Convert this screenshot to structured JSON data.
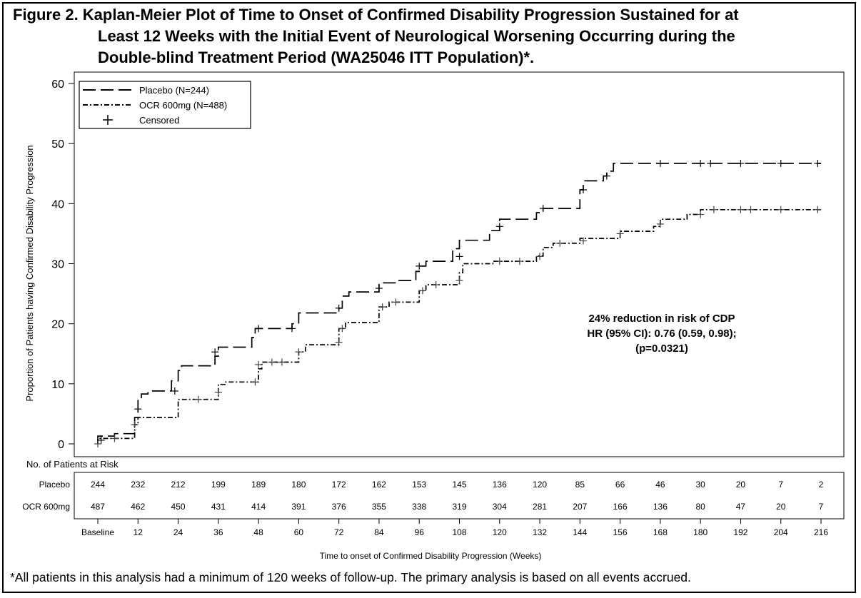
{
  "title": {
    "line1": "Figure 2. Kaplan-Meier Plot of Time to Onset of Confirmed Disability Progression Sustained for at",
    "line2": "Least 12 Weeks with the Initial Event of Neurological Worsening Occurring during the",
    "line3": "Double-blind Treatment Period (WA25046 ITT Population)*."
  },
  "footnote": "*All patients in this analysis had a minimum of 120 weeks of follow-up. The primary analysis is based on all events accrued.",
  "chart_data": {
    "type": "line",
    "step": true,
    "ylabel": "Proportion of Patients having Confirmed Disability Progression",
    "xlabel": "Time to onset of Confirmed Disability Progression (Weeks)",
    "xlim": [
      0,
      216
    ],
    "ylim": [
      0,
      60
    ],
    "yticks": [
      0,
      10,
      20,
      30,
      40,
      50,
      60
    ],
    "xticks": [
      0,
      12,
      24,
      36,
      48,
      60,
      72,
      84,
      96,
      108,
      120,
      132,
      144,
      156,
      168,
      180,
      192,
      204,
      216
    ],
    "xtick_labels": [
      "Baseline",
      "12",
      "24",
      "36",
      "48",
      "60",
      "72",
      "84",
      "96",
      "108",
      "120",
      "132",
      "144",
      "156",
      "168",
      "180",
      "192",
      "204",
      "216"
    ],
    "grid": false,
    "legend_position": "top-left",
    "legend": [
      {
        "label": "Placebo (N=244)",
        "style": "long-dash"
      },
      {
        "label": "OCR 600mg (N=488)",
        "style": "dash-dot"
      },
      {
        "label": "Censored",
        "style": "plus"
      }
    ],
    "annotation": {
      "line1": "24% reduction in risk of CDP",
      "line2": "HR (95% CI): 0.76 (0.59, 0.98);",
      "line3": "(p=0.0321)"
    },
    "series": [
      {
        "name": "Placebo (N=244)",
        "color": "#000000",
        "points": [
          [
            0,
            0
          ],
          [
            0,
            1.3
          ],
          [
            5,
            1.3
          ],
          [
            5,
            1.7
          ],
          [
            11,
            1.7
          ],
          [
            11,
            4.4
          ],
          [
            12,
            4.4
          ],
          [
            12,
            7.4
          ],
          [
            13,
            7.4
          ],
          [
            13,
            8.3
          ],
          [
            15,
            8.3
          ],
          [
            15,
            8.8
          ],
          [
            22,
            8.8
          ],
          [
            22,
            10.5
          ],
          [
            24,
            10.5
          ],
          [
            24,
            12.2
          ],
          [
            25,
            12.2
          ],
          [
            25,
            13.0
          ],
          [
            35,
            13.0
          ],
          [
            35,
            14.6
          ],
          [
            36,
            14.6
          ],
          [
            36,
            16.1
          ],
          [
            46,
            16.1
          ],
          [
            46,
            17.7
          ],
          [
            47,
            17.7
          ],
          [
            47,
            19.2
          ],
          [
            58,
            19.2
          ],
          [
            58,
            20.0
          ],
          [
            60,
            20.0
          ],
          [
            60,
            21.8
          ],
          [
            72,
            21.8
          ],
          [
            72,
            22.6
          ],
          [
            73,
            22.6
          ],
          [
            73,
            24.6
          ],
          [
            75,
            24.6
          ],
          [
            75,
            25.3
          ],
          [
            84,
            25.3
          ],
          [
            84,
            26.8
          ],
          [
            89,
            26.8
          ],
          [
            89,
            27.2
          ],
          [
            95,
            27.2
          ],
          [
            95,
            28.7
          ],
          [
            96,
            28.7
          ],
          [
            96,
            29.6
          ],
          [
            98,
            29.6
          ],
          [
            98,
            30.4
          ],
          [
            106,
            30.4
          ],
          [
            106,
            32.5
          ],
          [
            108,
            32.5
          ],
          [
            108,
            33.9
          ],
          [
            117,
            33.9
          ],
          [
            117,
            35.5
          ],
          [
            120,
            35.5
          ],
          [
            120,
            37.4
          ],
          [
            131,
            37.4
          ],
          [
            131,
            38.5
          ],
          [
            133,
            38.5
          ],
          [
            133,
            39.2
          ],
          [
            144,
            39.2
          ],
          [
            144,
            42.3
          ],
          [
            145,
            42.3
          ],
          [
            145,
            43.8
          ],
          [
            151,
            43.8
          ],
          [
            151,
            44.6
          ],
          [
            152,
            44.6
          ],
          [
            152,
            45.4
          ],
          [
            154,
            45.4
          ],
          [
            154,
            46.7
          ],
          [
            216,
            46.7
          ]
        ],
        "censored": [
          [
            1,
            0.6
          ],
          [
            12,
            5.8
          ],
          [
            23,
            8.8
          ],
          [
            35,
            15.3
          ],
          [
            48,
            19.2
          ],
          [
            58,
            19.2
          ],
          [
            72,
            22.6
          ],
          [
            84,
            25.9
          ],
          [
            96,
            29.6
          ],
          [
            108,
            31.2
          ],
          [
            120,
            36.2
          ],
          [
            133,
            39.2
          ],
          [
            145,
            42.3
          ],
          [
            152,
            44.6
          ],
          [
            168,
            46.7
          ],
          [
            180,
            46.7
          ],
          [
            183,
            46.7
          ],
          [
            192,
            46.7
          ],
          [
            204,
            46.7
          ],
          [
            215,
            46.7
          ]
        ]
      },
      {
        "name": "OCR 600mg (N=488)",
        "color": "#000000",
        "points": [
          [
            0,
            0
          ],
          [
            0,
            0.9
          ],
          [
            11,
            0.9
          ],
          [
            11,
            3.2
          ],
          [
            12,
            3.2
          ],
          [
            12,
            4.4
          ],
          [
            24,
            4.4
          ],
          [
            24,
            7.4
          ],
          [
            36,
            7.4
          ],
          [
            36,
            9.9
          ],
          [
            38,
            9.9
          ],
          [
            38,
            10.3
          ],
          [
            48,
            10.3
          ],
          [
            48,
            12.5
          ],
          [
            49,
            12.5
          ],
          [
            49,
            13.6
          ],
          [
            60,
            13.6
          ],
          [
            60,
            15.3
          ],
          [
            62,
            15.3
          ],
          [
            62,
            16.5
          ],
          [
            72,
            16.5
          ],
          [
            72,
            19.2
          ],
          [
            74,
            19.2
          ],
          [
            74,
            20.2
          ],
          [
            84,
            20.2
          ],
          [
            84,
            22.8
          ],
          [
            87,
            22.8
          ],
          [
            87,
            23.6
          ],
          [
            96,
            23.6
          ],
          [
            96,
            25.5
          ],
          [
            98,
            25.5
          ],
          [
            98,
            26.5
          ],
          [
            108,
            26.5
          ],
          [
            108,
            28.5
          ],
          [
            109,
            28.5
          ],
          [
            109,
            30.0
          ],
          [
            118,
            30.0
          ],
          [
            118,
            30.4
          ],
          [
            131,
            30.4
          ],
          [
            131,
            31.3
          ],
          [
            133,
            31.3
          ],
          [
            133,
            32.7
          ],
          [
            136,
            32.7
          ],
          [
            136,
            33.4
          ],
          [
            144,
            33.4
          ],
          [
            144,
            34.2
          ],
          [
            156,
            34.2
          ],
          [
            156,
            35.4
          ],
          [
            166,
            35.4
          ],
          [
            166,
            36.2
          ],
          [
            168,
            36.2
          ],
          [
            168,
            37.4
          ],
          [
            176,
            37.4
          ],
          [
            176,
            38.2
          ],
          [
            180,
            38.2
          ],
          [
            180,
            39.0
          ],
          [
            216,
            39.0
          ]
        ],
        "censored": [
          [
            0,
            0
          ],
          [
            5,
            0.9
          ],
          [
            11,
            3.2
          ],
          [
            30,
            7.4
          ],
          [
            36,
            8.6
          ],
          [
            47,
            10.3
          ],
          [
            48,
            13.2
          ],
          [
            52,
            13.6
          ],
          [
            55,
            13.6
          ],
          [
            60,
            15.3
          ],
          [
            72,
            16.9
          ],
          [
            73,
            19.2
          ],
          [
            85,
            22.8
          ],
          [
            89,
            23.6
          ],
          [
            97,
            25.5
          ],
          [
            101,
            26.5
          ],
          [
            108,
            27.2
          ],
          [
            120,
            30.4
          ],
          [
            126,
            30.4
          ],
          [
            132,
            31.2
          ],
          [
            138,
            33.4
          ],
          [
            145,
            33.8
          ],
          [
            156,
            35.0
          ],
          [
            168,
            36.6
          ],
          [
            180,
            38.2
          ],
          [
            184,
            39.0
          ],
          [
            192,
            39.0
          ],
          [
            195,
            39.0
          ],
          [
            204,
            39.0
          ],
          [
            215,
            39.0
          ]
        ]
      }
    ],
    "risk_table": {
      "header": "No. of Patients at Risk",
      "rows": [
        {
          "label": "Placebo",
          "values": [
            "244",
            "232",
            "212",
            "199",
            "189",
            "180",
            "172",
            "162",
            "153",
            "145",
            "136",
            "120",
            "85",
            "66",
            "46",
            "30",
            "20",
            "7",
            "2"
          ]
        },
        {
          "label": "OCR 600mg",
          "values": [
            "487",
            "462",
            "450",
            "431",
            "414",
            "391",
            "376",
            "355",
            "338",
            "319",
            "304",
            "281",
            "207",
            "166",
            "136",
            "80",
            "47",
            "20",
            "7"
          ]
        }
      ]
    }
  }
}
